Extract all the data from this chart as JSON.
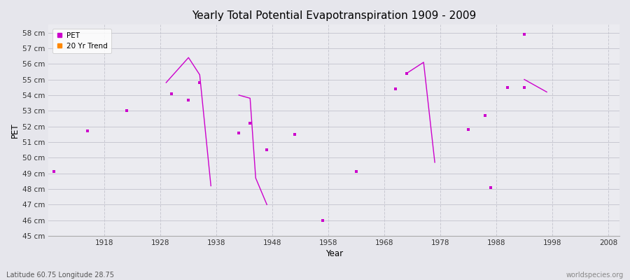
{
  "title": "Yearly Total Potential Evapotranspiration 1909 - 2009",
  "xlabel": "Year",
  "ylabel": "PET",
  "footer_left": "Latitude 60.75 Longitude 28.75",
  "footer_right": "worldspecies.org",
  "xlim": [
    1908,
    2010
  ],
  "ylim": [
    45.0,
    58.5
  ],
  "yticks": [
    45,
    46,
    47,
    48,
    49,
    50,
    51,
    52,
    53,
    54,
    55,
    56,
    57,
    58
  ],
  "xticks": [
    1918,
    1928,
    1938,
    1948,
    1958,
    1968,
    1978,
    1988,
    1998,
    2008
  ],
  "bg_color": "#e6e6ec",
  "plot_bg_color": "#ebebf0",
  "grid_color_h": "#c8c8d2",
  "grid_color_v": "#c8c8d2",
  "pet_color": "#cc00cc",
  "pet_marker": "s",
  "pet_markersize": 2.5,
  "pet_data": [
    [
      1909,
      49.1
    ],
    [
      1915,
      51.7
    ],
    [
      1922,
      53.0
    ],
    [
      1930,
      54.1
    ],
    [
      1933,
      53.7
    ],
    [
      1935,
      54.8
    ],
    [
      1942,
      51.6
    ],
    [
      1944,
      52.2
    ],
    [
      1947,
      50.5
    ],
    [
      1952,
      51.5
    ],
    [
      1957,
      46.0
    ],
    [
      1963,
      49.1
    ],
    [
      1970,
      54.4
    ],
    [
      1972,
      55.4
    ],
    [
      1983,
      51.8
    ],
    [
      1986,
      52.7
    ],
    [
      1987,
      48.1
    ],
    [
      1990,
      54.5
    ],
    [
      1993,
      54.5
    ],
    [
      1993,
      57.9
    ]
  ],
  "trend_segments": [
    [
      [
        1929,
        54.8
      ],
      [
        1933,
        56.4
      ],
      [
        1935,
        55.3
      ],
      [
        1937,
        48.2
      ]
    ],
    [
      [
        1942,
        54.0
      ],
      [
        1944,
        53.8
      ],
      [
        1945,
        48.7
      ],
      [
        1947,
        47.0
      ]
    ],
    [
      [
        1972,
        55.4
      ],
      [
        1975,
        56.1
      ],
      [
        1977,
        49.7
      ]
    ],
    [
      [
        1993,
        55.0
      ],
      [
        1997,
        54.2
      ]
    ]
  ],
  "legend_pet_label": "PET",
  "legend_trend_label": "20 Yr Trend",
  "legend_trend_color": "#ff8800"
}
